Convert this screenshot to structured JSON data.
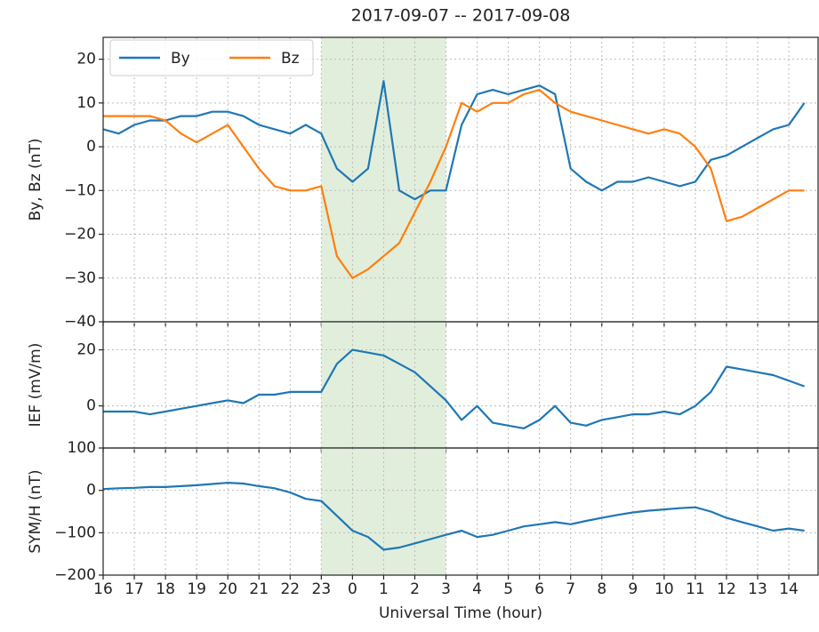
{
  "chart_data": [
    {
      "type": "line",
      "title": "2017-09-07 -- 2017-09-08",
      "ylabel": "By, Bz (nT)",
      "x": [
        16,
        16.5,
        17,
        17.5,
        18,
        18.5,
        19,
        19.5,
        20,
        20.5,
        21,
        21.5,
        22,
        22.5,
        23,
        23.5,
        24,
        24.5,
        25,
        25.5,
        26,
        26.5,
        27,
        27.5,
        28,
        28.5,
        29,
        29.5,
        30,
        30.5,
        31,
        31.5,
        32,
        32.5,
        33,
        33.5,
        34,
        34.5,
        35,
        35.5,
        36,
        36.5,
        37,
        37.5,
        38,
        38.5
      ],
      "series": [
        {
          "name": "By",
          "color": "#1f77b4",
          "values": [
            4,
            3,
            5,
            6,
            6,
            7,
            7,
            8,
            8,
            7,
            5,
            4,
            3,
            5,
            3,
            -5,
            -8,
            -5,
            15,
            -10,
            -12,
            -10,
            -10,
            5,
            12,
            13,
            12,
            13,
            14,
            12,
            -5,
            -8,
            -10,
            -8,
            -8,
            -7,
            -8,
            -9,
            -8,
            -3,
            -2,
            0,
            2,
            4,
            5,
            10
          ]
        },
        {
          "name": "Bz",
          "color": "#ff7f0e",
          "values": [
            7,
            7,
            7,
            7,
            6,
            3,
            1,
            3,
            5,
            0,
            -5,
            -9,
            -10,
            -10,
            -9,
            -25,
            -30,
            -28,
            -25,
            -22,
            -15,
            -8,
            0,
            10,
            8,
            10,
            10,
            12,
            13,
            10,
            8,
            7,
            6,
            5,
            4,
            3,
            4,
            3,
            0,
            -5,
            -17,
            -16,
            -14,
            -12,
            -10,
            -10
          ]
        }
      ],
      "xlim": [
        16,
        38.94
      ],
      "ylim": [
        -40,
        25
      ],
      "yticks": [
        {
          "value": -40,
          "label": "−40"
        },
        {
          "value": -30,
          "label": "−30"
        },
        {
          "value": -20,
          "label": "−20"
        },
        {
          "value": -10,
          "label": "−10"
        },
        0,
        10,
        20
      ],
      "grid": true,
      "legend": "upper left",
      "shade": [
        23,
        27
      ],
      "shade_color": "#e1eedc"
    },
    {
      "type": "line",
      "ylabel": "IEF (mV/m)",
      "x": [
        16,
        16.5,
        17,
        17.5,
        18,
        18.5,
        19,
        19.5,
        20,
        20.5,
        21,
        21.5,
        22,
        22.5,
        23,
        23.5,
        24,
        24.5,
        25,
        25.5,
        26,
        26.5,
        27,
        27.5,
        28,
        28.5,
        29,
        29.5,
        30,
        30.5,
        31,
        31.5,
        32,
        32.5,
        33,
        33.5,
        34,
        34.5,
        35,
        35.5,
        36,
        36.5,
        37,
        37.5,
        38,
        38.5
      ],
      "series": [
        {
          "name": "IEF",
          "color": "#1f77b4",
          "values": [
            -2,
            -2,
            -2,
            -3,
            -2,
            -1,
            0,
            1,
            2,
            1,
            4,
            4,
            5,
            5,
            5,
            15,
            20,
            19,
            18,
            15,
            12,
            7,
            2,
            -5,
            0,
            -6,
            -7,
            -8,
            -5,
            0,
            -6,
            -7,
            -5,
            -4,
            -3,
            -3,
            -2,
            -3,
            0,
            5,
            14,
            13,
            12,
            11,
            9,
            7
          ]
        }
      ],
      "xlim": [
        16,
        38.94
      ],
      "ylim": [
        -15,
        30
      ],
      "yticks": [
        0,
        20
      ],
      "grid": true,
      "shade": [
        23,
        27
      ],
      "shade_color": "#e1eedc"
    },
    {
      "type": "line",
      "ylabel": "SYM/H (nT)",
      "xlabel": "Universal Time (hour)",
      "x": [
        16,
        16.5,
        17,
        17.5,
        18,
        18.5,
        19,
        19.5,
        20,
        20.5,
        21,
        21.5,
        22,
        22.5,
        23,
        23.5,
        24,
        24.5,
        25,
        25.5,
        26,
        26.5,
        27,
        27.5,
        28,
        28.5,
        29,
        29.5,
        30,
        30.5,
        31,
        31.5,
        32,
        32.5,
        33,
        33.5,
        34,
        34.5,
        35,
        35.5,
        36,
        36.5,
        37,
        37.5,
        38,
        38.5
      ],
      "series": [
        {
          "name": "SYM/H",
          "color": "#1f77b4",
          "values": [
            3,
            5,
            6,
            8,
            8,
            10,
            12,
            15,
            18,
            16,
            10,
            5,
            -5,
            -20,
            -25,
            -60,
            -95,
            -110,
            -140,
            -135,
            -125,
            -115,
            -105,
            -95,
            -110,
            -105,
            -95,
            -85,
            -80,
            -75,
            -80,
            -72,
            -65,
            -58,
            -52,
            -48,
            -45,
            -42,
            -40,
            -50,
            -65,
            -75,
            -85,
            -95,
            -90,
            -95
          ]
        }
      ],
      "xlim": [
        16,
        38.94
      ],
      "ylim": [
        -200,
        100
      ],
      "yticks": [
        {
          "value": -200,
          "label": "−200"
        },
        {
          "value": -100,
          "label": "−100"
        },
        0,
        100
      ],
      "xticks": [
        16,
        17,
        18,
        19,
        20,
        21,
        22,
        23,
        {
          "value": 24,
          "label": "0"
        },
        {
          "value": 25,
          "label": "1"
        },
        {
          "value": 26,
          "label": "2"
        },
        {
          "value": 27,
          "label": "3"
        },
        {
          "value": 28,
          "label": "4"
        },
        {
          "value": 29,
          "label": "5"
        },
        {
          "value": 30,
          "label": "6"
        },
        {
          "value": 31,
          "label": "7"
        },
        {
          "value": 32,
          "label": "8"
        },
        {
          "value": 33,
          "label": "9"
        },
        {
          "value": 34,
          "label": "10"
        },
        {
          "value": 35,
          "label": "11"
        },
        {
          "value": 36,
          "label": "12"
        },
        {
          "value": 37,
          "label": "13"
        },
        {
          "value": 38,
          "label": "14"
        }
      ],
      "grid": true,
      "shade": [
        23,
        27
      ],
      "shade_color": "#e1eedc"
    }
  ]
}
